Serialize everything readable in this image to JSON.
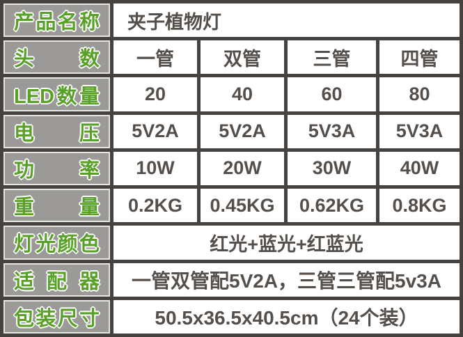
{
  "colors": {
    "grid_border": "#454240",
    "label_background": "#9b9a98",
    "label_green": "#58a027",
    "value_text": "#544f4b",
    "cell_background": "#ffffff"
  },
  "table": {
    "rows": [
      {
        "label": "产品名称",
        "value": "夹子植物灯"
      },
      {
        "label": "头数",
        "values": [
          "一管",
          "双管",
          "三管",
          "四管"
        ]
      },
      {
        "label": "LED数量",
        "values": [
          "20",
          "40",
          "60",
          "80"
        ]
      },
      {
        "label": "电压",
        "values": [
          "5V2A",
          "5V2A",
          "5V3A",
          "5V3A"
        ]
      },
      {
        "label": "功率",
        "values": [
          "10W",
          "20W",
          "30W",
          "40W"
        ]
      },
      {
        "label": "重量",
        "values": [
          "0.2KG",
          "0.45KG",
          "0.62KG",
          "0.8KG"
        ]
      },
      {
        "label": "灯光颜色",
        "value": "红光+蓝光+红蓝光"
      },
      {
        "label": "适配器",
        "value": "一管双管配5V2A，三管三管配5v3A"
      },
      {
        "label": "包装尺寸",
        "value": "50.5x36.5x40.5cm（24个装）"
      }
    ]
  }
}
